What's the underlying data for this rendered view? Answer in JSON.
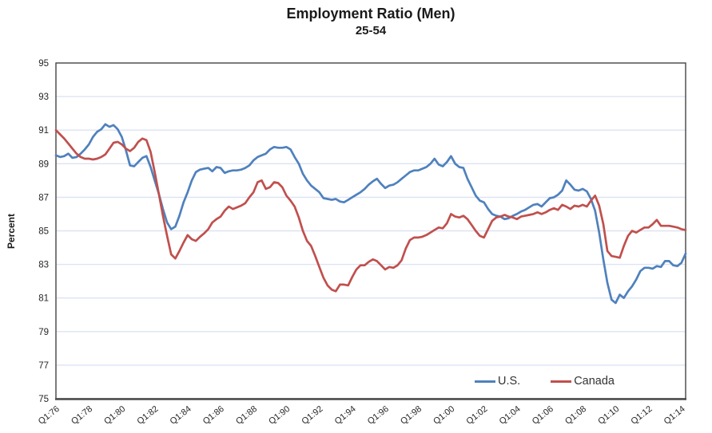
{
  "chart_data": {
    "type": "line",
    "title": "Employment Ratio (Men)",
    "subtitle": "25-54",
    "ylabel": "Percent",
    "ylim": [
      75,
      95
    ],
    "y_ticks": [
      95,
      93,
      91,
      89,
      87,
      85,
      83,
      81,
      79,
      77,
      75
    ],
    "x_tick_labels": [
      "Q1:76",
      "Q1:78",
      "Q1:80",
      "Q1:82",
      "Q1:84",
      "Q1:86",
      "Q1:88",
      "Q1:90",
      "Q1:92",
      "Q1:94",
      "Q1:96",
      "Q1:98",
      "Q1:00",
      "Q1:02",
      "Q1:04",
      "Q1:06",
      "Q1:08",
      "Q1:10",
      "Q1:12",
      "Q1:14"
    ],
    "x_tick_every_points": 8,
    "x_start": "1976Q1",
    "x_end": "2014Q2",
    "frequency": "quarterly",
    "grid": "horizontal",
    "legend_position": "inside-bottom-right",
    "colors": {
      "gridline": "#dce3f3",
      "plot_border": "#454545",
      "x_axis_line": "#4a4a4a",
      "tick_label": "#262626"
    },
    "series": [
      {
        "name": "U.S.",
        "color": "#4f81bd",
        "values": [
          89.5,
          89.4,
          89.45,
          89.6,
          89.35,
          89.4,
          89.6,
          89.85,
          90.15,
          90.6,
          90.9,
          91.05,
          91.35,
          91.2,
          91.3,
          91.05,
          90.6,
          89.8,
          88.9,
          88.85,
          89.1,
          89.35,
          89.45,
          88.8,
          88.0,
          87.2,
          86.3,
          85.5,
          85.1,
          85.25,
          85.9,
          86.7,
          87.3,
          88.0,
          88.5,
          88.65,
          88.7,
          88.75,
          88.55,
          88.8,
          88.75,
          88.45,
          88.55,
          88.6,
          88.6,
          88.65,
          88.75,
          88.9,
          89.2,
          89.4,
          89.5,
          89.6,
          89.85,
          90.0,
          89.95,
          89.95,
          90.0,
          89.85,
          89.4,
          89.0,
          88.4,
          88.0,
          87.7,
          87.5,
          87.3,
          86.95,
          86.9,
          86.85,
          86.9,
          86.75,
          86.7,
          86.85,
          87.0,
          87.15,
          87.3,
          87.5,
          87.75,
          87.95,
          88.1,
          87.8,
          87.55,
          87.7,
          87.75,
          87.9,
          88.1,
          88.3,
          88.5,
          88.6,
          88.6,
          88.7,
          88.8,
          89.0,
          89.3,
          88.95,
          88.85,
          89.1,
          89.45,
          89.0,
          88.8,
          88.75,
          88.1,
          87.6,
          87.1,
          86.8,
          86.7,
          86.3,
          86.0,
          85.9,
          85.85,
          85.7,
          85.75,
          85.9,
          86.0,
          86.15,
          86.25,
          86.4,
          86.55,
          86.6,
          86.45,
          86.7,
          86.95,
          87.0,
          87.15,
          87.4,
          88.0,
          87.75,
          87.45,
          87.4,
          87.5,
          87.35,
          86.9,
          86.2,
          84.9,
          83.3,
          81.9,
          80.9,
          80.7,
          81.2,
          81.0,
          81.4,
          81.7,
          82.1,
          82.6,
          82.8,
          82.8,
          82.75,
          82.9,
          82.85,
          83.2,
          83.2,
          82.95,
          82.9,
          83.1,
          83.65
        ]
      },
      {
        "name": "Canada",
        "color": "#c0504d",
        "values": [
          91.0,
          90.75,
          90.5,
          90.2,
          89.9,
          89.6,
          89.4,
          89.3,
          89.3,
          89.25,
          89.3,
          89.4,
          89.55,
          89.9,
          90.25,
          90.3,
          90.15,
          89.9,
          89.75,
          89.95,
          90.3,
          90.5,
          90.4,
          89.7,
          88.5,
          87.2,
          85.9,
          84.7,
          83.6,
          83.35,
          83.8,
          84.3,
          84.75,
          84.5,
          84.4,
          84.65,
          84.85,
          85.1,
          85.5,
          85.7,
          85.85,
          86.2,
          86.45,
          86.3,
          86.4,
          86.5,
          86.65,
          87.0,
          87.3,
          87.9,
          88.0,
          87.5,
          87.6,
          87.9,
          87.85,
          87.6,
          87.1,
          86.8,
          86.45,
          85.8,
          85.0,
          84.4,
          84.1,
          83.5,
          82.85,
          82.2,
          81.75,
          81.5,
          81.4,
          81.8,
          81.8,
          81.75,
          82.25,
          82.7,
          82.95,
          82.95,
          83.15,
          83.3,
          83.2,
          82.95,
          82.7,
          82.85,
          82.8,
          82.95,
          83.25,
          83.95,
          84.45,
          84.6,
          84.6,
          84.65,
          84.75,
          84.9,
          85.05,
          85.2,
          85.15,
          85.45,
          86.0,
          85.85,
          85.8,
          85.9,
          85.7,
          85.35,
          85.0,
          84.7,
          84.6,
          85.1,
          85.6,
          85.8,
          85.85,
          85.95,
          85.85,
          85.8,
          85.7,
          85.85,
          85.9,
          85.95,
          86.0,
          86.1,
          86.0,
          86.1,
          86.25,
          86.35,
          86.25,
          86.55,
          86.45,
          86.3,
          86.5,
          86.45,
          86.55,
          86.45,
          86.8,
          87.1,
          86.5,
          85.4,
          83.8,
          83.5,
          83.45,
          83.4,
          84.1,
          84.7,
          85.0,
          84.9,
          85.05,
          85.2,
          85.2,
          85.4,
          85.65,
          85.3,
          85.3,
          85.3,
          85.25,
          85.2,
          85.1,
          85.05
        ]
      }
    ]
  }
}
